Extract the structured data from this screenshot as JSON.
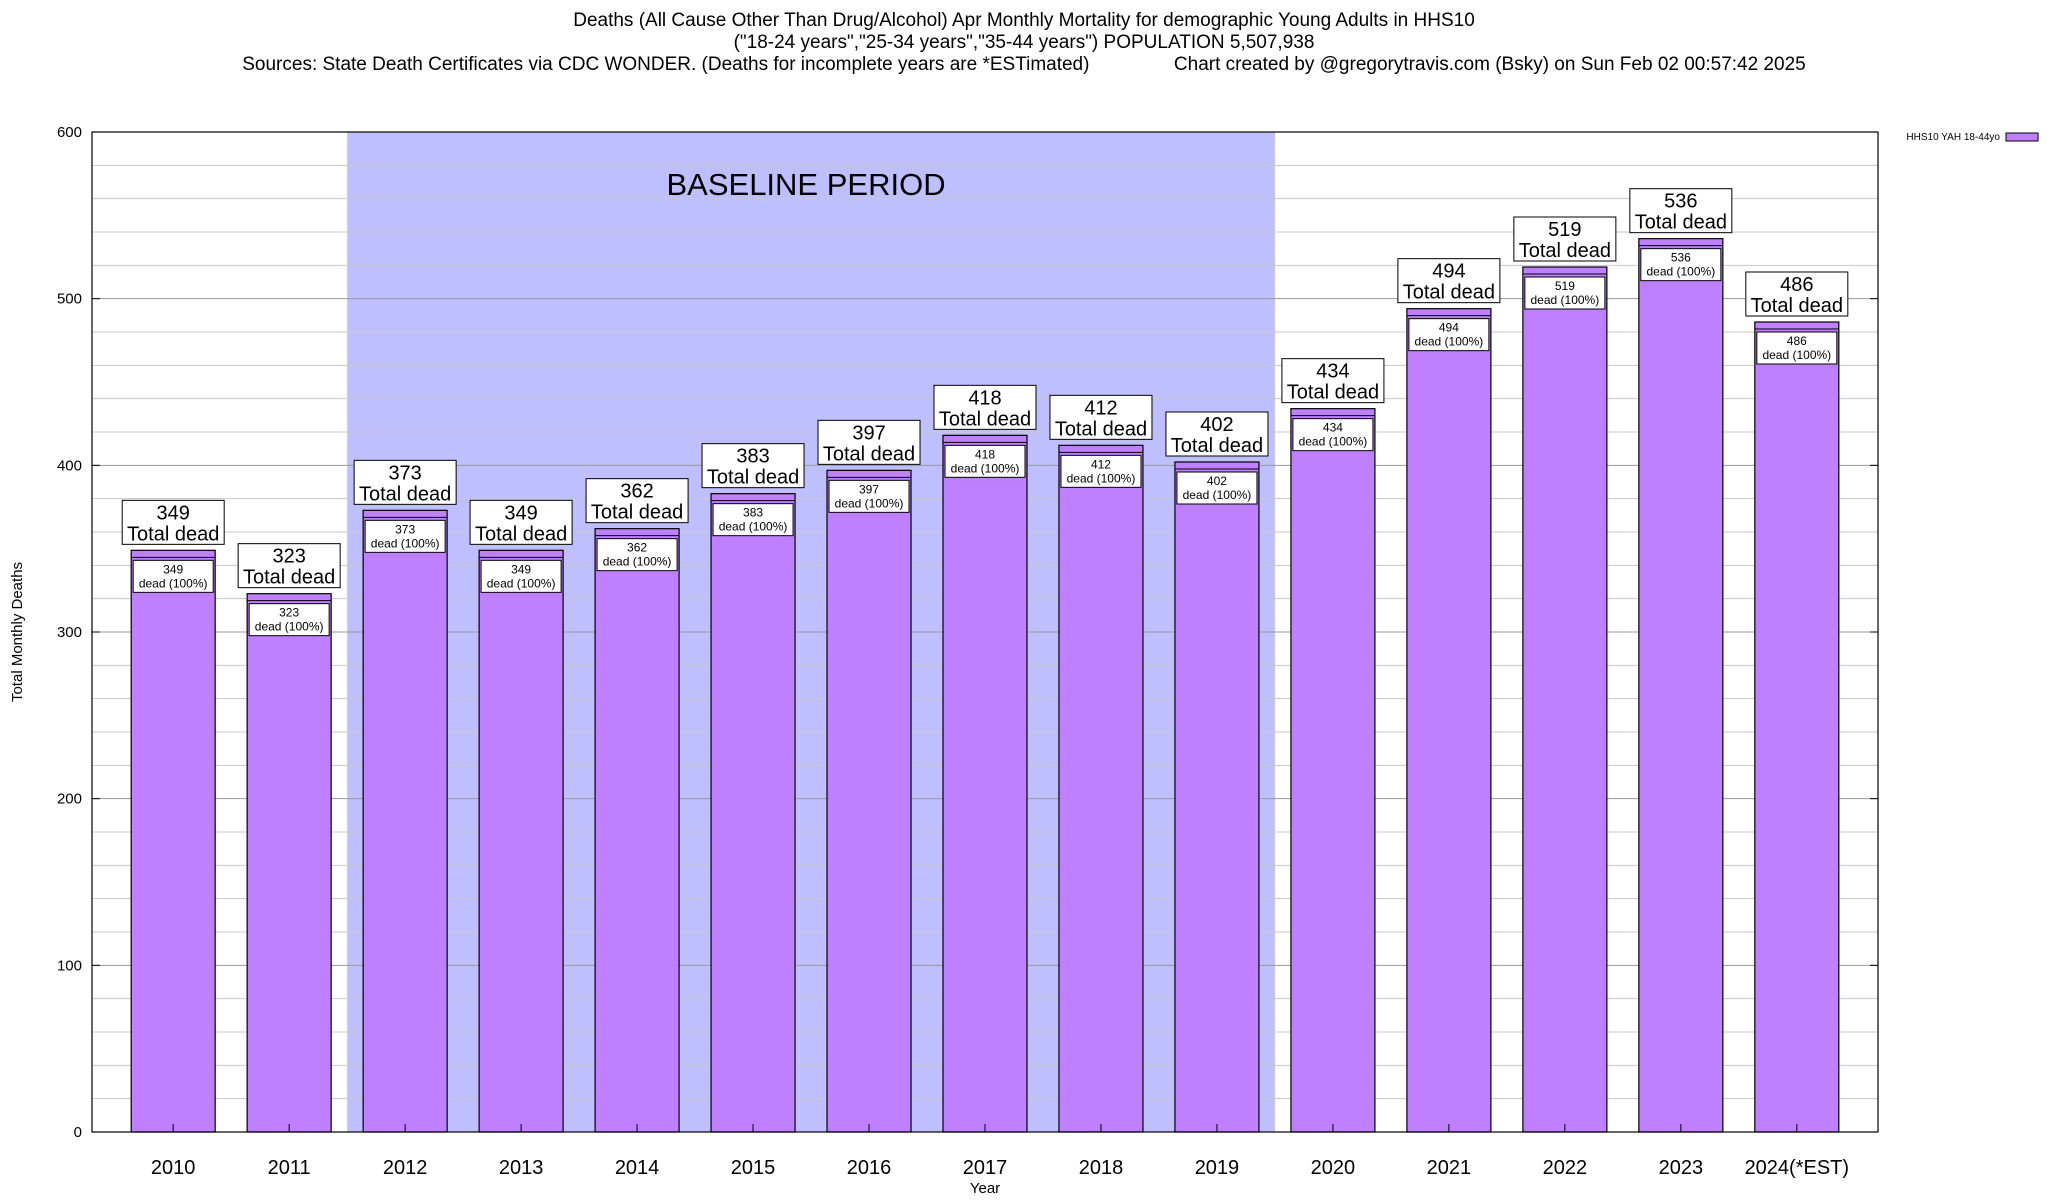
{
  "header": {
    "line1": "Deaths (All Cause Other Than Drug/Alcohol) Apr Monthly Mortality for demographic Young Adults in HHS10",
    "line2": "(\"18-24 years\",\"25-34 years\",\"35-44 years\") POPULATION 5,507,938",
    "line3": "Sources: State Death Certificates via CDC WONDER. (Deaths for incomplete years are *ESTimated)                Chart created by @gregorytravis.com (Bsky) on Sun Feb 02 00:57:42 2025"
  },
  "chart_data": {
    "type": "bar",
    "xlabel": "Year",
    "ylabel": "Total Monthly Deaths",
    "ylim": [
      0,
      600
    ],
    "yticks": [
      0,
      100,
      200,
      300,
      400,
      500,
      600
    ],
    "grid": true,
    "categories": [
      "2010",
      "2011",
      "2012",
      "2013",
      "2014",
      "2015",
      "2016",
      "2017",
      "2018",
      "2019",
      "2020",
      "2021",
      "2022",
      "2023",
      "2024(*EST)"
    ],
    "series": [
      {
        "name": "HHS10 YAH 18-44yo",
        "color": "#bf80ff",
        "values": [
          349,
          323,
          373,
          349,
          362,
          383,
          397,
          418,
          412,
          402,
          434,
          494,
          519,
          536,
          486
        ]
      }
    ],
    "bar_label_top": "Total dead",
    "bar_label_inner": "dead (100%)",
    "legend_position": "top-right",
    "baseline_period": {
      "label": "BASELINE PERIOD",
      "start": "2012",
      "end": "2019",
      "color": "#bfbfff"
    }
  }
}
